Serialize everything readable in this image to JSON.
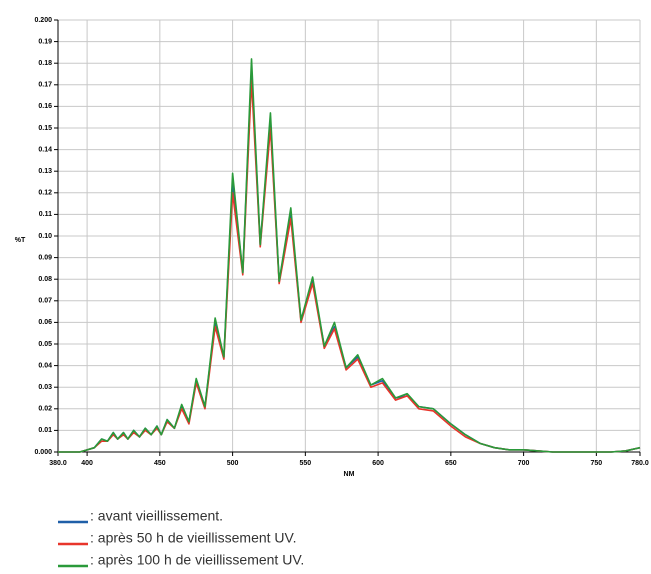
{
  "chart_data": {
    "type": "line",
    "ylabel": "%T",
    "xlabel": "NM",
    "xlim": [
      380,
      780
    ],
    "xticks": [
      {
        "value": 380,
        "label": "380.0"
      },
      400,
      450,
      500,
      550,
      600,
      650,
      700,
      750,
      {
        "value": 780,
        "label": "780.0"
      }
    ],
    "ylim": [
      0,
      0.2
    ],
    "yticks": [
      {
        "value": 0,
        "label": "0.000"
      },
      0.01,
      0.02,
      0.03,
      0.04,
      0.05,
      0.06,
      0.07,
      0.08,
      0.09,
      {
        "value": 0.1,
        "label": "0.10"
      },
      0.11,
      0.12,
      0.13,
      0.14,
      0.15,
      0.16,
      0.17,
      0.18,
      0.19,
      {
        "value": 0.2,
        "label": "0.200"
      }
    ],
    "grid": true,
    "x": [
      380,
      395,
      400,
      405,
      410,
      414,
      418,
      421,
      425,
      428,
      432,
      436,
      440,
      444,
      448,
      451,
      455,
      460,
      465,
      470,
      475,
      481,
      488,
      494,
      500,
      507,
      513,
      519,
      526,
      532,
      540,
      547,
      555,
      563,
      570,
      578,
      586,
      595,
      603,
      612,
      620,
      628,
      638,
      650,
      660,
      670,
      680,
      690,
      700,
      710,
      720,
      740,
      760,
      770,
      780
    ],
    "series": [
      {
        "name": ": avant vieillissement.",
        "color": "#1f5fa8",
        "values": [
          0,
          0,
          0.001,
          0.002,
          0.006,
          0.005,
          0.009,
          0.006,
          0.009,
          0.006,
          0.01,
          0.007,
          0.011,
          0.008,
          0.012,
          0.008,
          0.015,
          0.011,
          0.021,
          0.014,
          0.033,
          0.021,
          0.06,
          0.044,
          0.125,
          0.083,
          0.177,
          0.096,
          0.153,
          0.079,
          0.11,
          0.061,
          0.079,
          0.049,
          0.058,
          0.039,
          0.044,
          0.031,
          0.033,
          0.025,
          0.026,
          0.021,
          0.02,
          0.013,
          0.008,
          0.004,
          0.002,
          0.001,
          0.001,
          0.0005,
          0,
          0,
          0,
          0.0005,
          0.002
        ]
      },
      {
        "name": ": après 50 h de vieillissement UV.",
        "color": "#e8352b",
        "values": [
          0,
          0,
          0.001,
          0.002,
          0.005,
          0.005,
          0.008,
          0.006,
          0.008,
          0.006,
          0.009,
          0.007,
          0.01,
          0.008,
          0.011,
          0.008,
          0.014,
          0.011,
          0.02,
          0.013,
          0.032,
          0.02,
          0.058,
          0.043,
          0.12,
          0.082,
          0.172,
          0.095,
          0.15,
          0.078,
          0.108,
          0.06,
          0.078,
          0.048,
          0.057,
          0.038,
          0.043,
          0.03,
          0.032,
          0.024,
          0.026,
          0.02,
          0.019,
          0.012,
          0.007,
          0.004,
          0.002,
          0.001,
          0.001,
          0.0005,
          0,
          0,
          0,
          0.0005,
          0.002
        ]
      },
      {
        "name": ": après 100 h de vieillissement UV.",
        "color": "#2a9a3a",
        "values": [
          0,
          0,
          0.001,
          0.002,
          0.006,
          0.005,
          0.009,
          0.006,
          0.009,
          0.006,
          0.01,
          0.007,
          0.011,
          0.008,
          0.012,
          0.008,
          0.015,
          0.011,
          0.022,
          0.014,
          0.034,
          0.021,
          0.062,
          0.044,
          0.129,
          0.083,
          0.182,
          0.096,
          0.157,
          0.079,
          0.113,
          0.061,
          0.081,
          0.049,
          0.06,
          0.039,
          0.045,
          0.031,
          0.034,
          0.025,
          0.027,
          0.021,
          0.02,
          0.013,
          0.008,
          0.004,
          0.002,
          0.001,
          0.001,
          0.0005,
          0,
          0,
          0,
          0.0005,
          0.002
        ]
      }
    ]
  }
}
